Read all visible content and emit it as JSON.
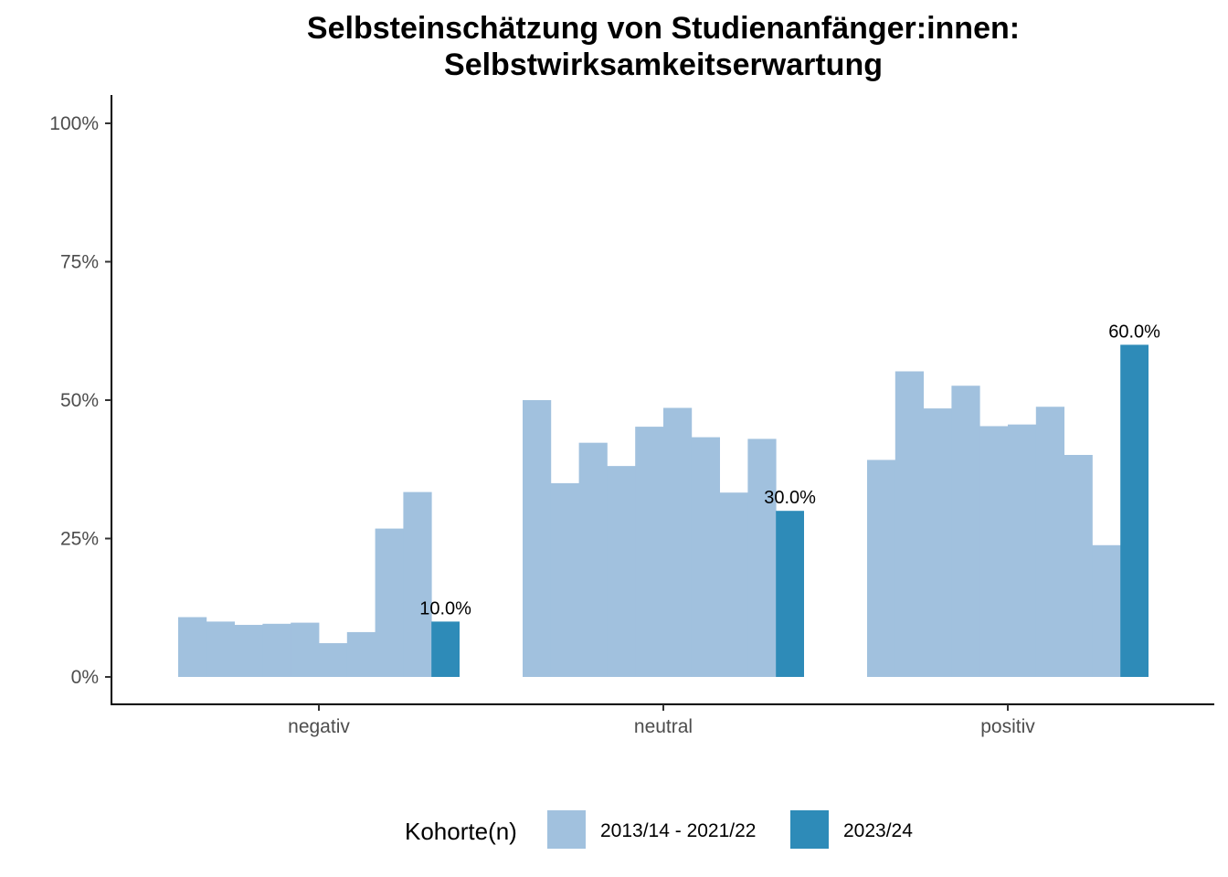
{
  "chart_data": {
    "type": "bar",
    "title": [
      "Selbsteinschätzung von Studienanfänger:innen:",
      "Selbstwirksamkeitserwartung"
    ],
    "categories": [
      "negativ",
      "neutral",
      "positiv"
    ],
    "series": [
      {
        "name": "2013/14 - 2021/22",
        "color": "#a1c1de",
        "values": [
          [
            10.8,
            10.0,
            9.4,
            9.6,
            9.8,
            6.1,
            8.1,
            26.8,
            33.4
          ],
          [
            50.0,
            35.0,
            42.3,
            38.1,
            45.2,
            48.6,
            43.3,
            33.3,
            43.0
          ],
          [
            39.2,
            55.2,
            48.5,
            52.6,
            45.3,
            45.6,
            48.8,
            40.1,
            23.8
          ]
        ]
      },
      {
        "name": "2023/24",
        "color": "#2e8bb8",
        "values": [
          10.0,
          30.0,
          60.0
        ],
        "labels": [
          "10.0%",
          "30.0%",
          "60.0%"
        ]
      }
    ],
    "ylim": [
      0,
      100
    ],
    "yticks": [
      0,
      25,
      50,
      75,
      100
    ],
    "ytick_labels": [
      "0%",
      "25%",
      "50%",
      "75%",
      "100%"
    ],
    "legend": {
      "title": "Kohorte(n)",
      "placement": "bottom",
      "entries": [
        "2013/14 - 2021/22",
        "2023/24"
      ]
    },
    "grid": false
  }
}
